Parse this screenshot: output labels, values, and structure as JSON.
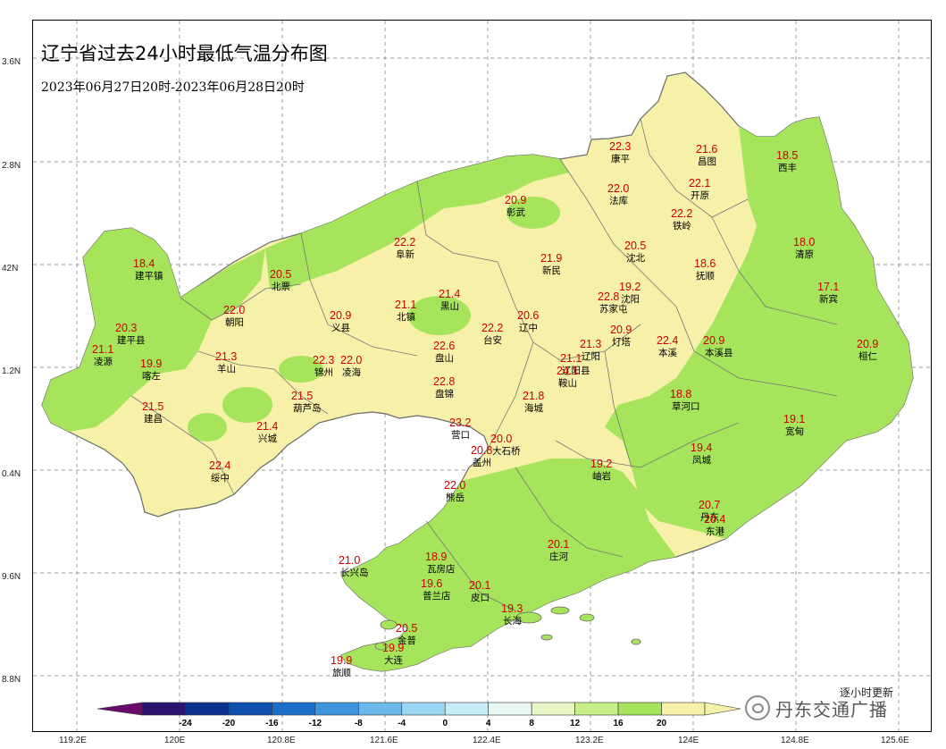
{
  "title": "辽宁省过去24小时最低气温分布图",
  "subtitle": "2023年06月27日20时-2023年06月28日20时",
  "lat_labels": [
    "3.6N",
    "2.8N",
    "42N",
    "1.2N",
    "0.4N",
    "9.6N",
    "8.8N"
  ],
  "lon_labels": [
    "119.2E",
    "120E",
    "120.8E",
    "121.6E",
    "122.4E",
    "123.2E",
    "124E",
    "124.8E",
    "125.6E"
  ],
  "colorbar": {
    "ticks": [
      "-24",
      "-20",
      "-16",
      "-12",
      "-8",
      "-4",
      "0",
      "4",
      "8",
      "12",
      "16",
      "20"
    ],
    "colors": [
      "#2a1470",
      "#0a2f8c",
      "#0f4fae",
      "#1a6ec8",
      "#3d93dc",
      "#6db8ea",
      "#9ad6f2",
      "#c5ecf7",
      "#e9f8f5",
      "#e8f7c4",
      "#c7f08a",
      "#a6e45c",
      "#f6f0a8"
    ],
    "low_end_color": "#6a0a6a"
  },
  "update_note": "逐小时更新",
  "watermark": "丹东交通广播",
  "stations": [
    {
      "name": "康平",
      "value": "22.3"
    },
    {
      "name": "昌图",
      "value": "21.6"
    },
    {
      "name": "西丰",
      "value": "18.5"
    },
    {
      "name": "彰武",
      "value": "20.9"
    },
    {
      "name": "法库",
      "value": "22.0"
    },
    {
      "name": "开原",
      "value": "22.1"
    },
    {
      "name": "铁岭",
      "value": "22.2"
    },
    {
      "name": "阜新",
      "value": "22.2"
    },
    {
      "name": "新民",
      "value": "21.9"
    },
    {
      "name": "沈北",
      "value": "20.5"
    },
    {
      "name": "清原",
      "value": "18.0"
    },
    {
      "name": "建平镇",
      "value": "18.4"
    },
    {
      "name": "北票",
      "value": "20.5"
    },
    {
      "name": "抚顺",
      "value": "18.6"
    },
    {
      "name": "新宾",
      "value": "17.1"
    },
    {
      "name": "北镇",
      "value": "21.1"
    },
    {
      "name": "黑山",
      "value": "21.4"
    },
    {
      "name": "苏家屯",
      "value": "22.8"
    },
    {
      "name": "沈阳",
      "value": "19.2"
    },
    {
      "name": "朝阳",
      "value": "22.0"
    },
    {
      "name": "义县",
      "value": "20.9"
    },
    {
      "name": "台安",
      "value": "22.2"
    },
    {
      "name": "辽中",
      "value": "20.6"
    },
    {
      "name": "灯塔",
      "value": "20.9"
    },
    {
      "name": "建平县",
      "value": "20.3"
    },
    {
      "name": "凌源",
      "value": "21.1"
    },
    {
      "name": "喀左",
      "value": "19.9"
    },
    {
      "name": "羊山",
      "value": "21.3"
    },
    {
      "name": "锦州",
      "value": "22.3"
    },
    {
      "name": "凌海",
      "value": "22.0"
    },
    {
      "name": "盘山",
      "value": "22.6"
    },
    {
      "name": "辽阳",
      "value": "21.3"
    },
    {
      "name": "辽阳县",
      "value": "21.1"
    },
    {
      "name": "本溪",
      "value": "22.4"
    },
    {
      "name": "本溪县",
      "value": "20.9"
    },
    {
      "name": "桓仁",
      "value": "20.9"
    },
    {
      "name": "鞍山",
      "value": "24.1"
    },
    {
      "name": "盘锦",
      "value": "22.8"
    },
    {
      "name": "海城",
      "value": "21.8"
    },
    {
      "name": "葫芦岛",
      "value": "21.5"
    },
    {
      "name": "草河口",
      "value": "18.8"
    },
    {
      "name": "建昌",
      "value": "21.5"
    },
    {
      "name": "营口",
      "value": "23.2"
    },
    {
      "name": "兴城",
      "value": "21.4"
    },
    {
      "name": "大石桥",
      "value": "20.0"
    },
    {
      "name": "宽甸",
      "value": "19.1"
    },
    {
      "name": "盖州",
      "value": "20.8"
    },
    {
      "name": "凤城",
      "value": "19.4"
    },
    {
      "name": "绥中",
      "value": "22.4"
    },
    {
      "name": "岫岩",
      "value": "19.2"
    },
    {
      "name": "熊岳",
      "value": "22.0"
    },
    {
      "name": "丹东",
      "value": "20.7"
    },
    {
      "name": "东港",
      "value": "20.4"
    },
    {
      "name": "瓦房店",
      "value": "18.9"
    },
    {
      "name": "庄河",
      "value": "20.1"
    },
    {
      "name": "长兴岛",
      "value": "21.0"
    },
    {
      "name": "普兰店",
      "value": "19.6"
    },
    {
      "name": "皮口",
      "value": "20.1"
    },
    {
      "name": "长海",
      "value": "19.3"
    },
    {
      "name": "金普",
      "value": "20.5"
    },
    {
      "name": "大连",
      "value": "19.9"
    },
    {
      "name": "旅顺",
      "value": "19.9"
    }
  ]
}
